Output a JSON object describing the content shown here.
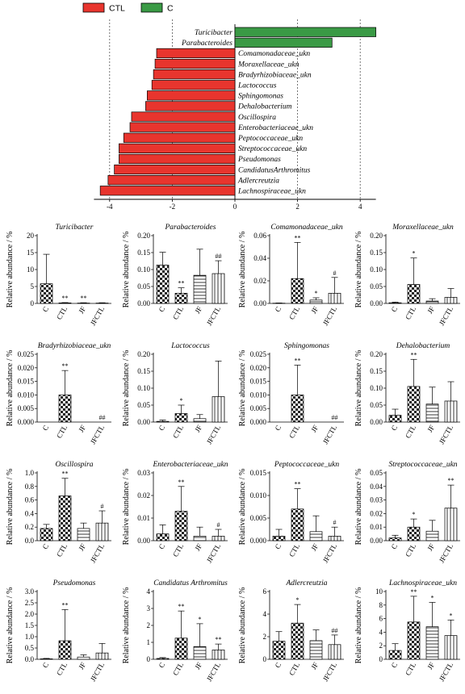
{
  "chart_data": [
    {
      "type": "bar",
      "orientation": "horizontal",
      "legend": [
        {
          "name": "CTL",
          "color": "#e8352e"
        },
        {
          "name": "C",
          "color": "#3a9a45"
        }
      ],
      "legend_placement": "top-left",
      "xlim": [
        -4.5,
        4.5
      ],
      "xticks": [
        "-4",
        "-2",
        "0",
        "2",
        "4"
      ],
      "grid": "dashed vertical lines at -4, -2, 2, 4",
      "categories": [
        "Turicibacter",
        "Parabacteroides",
        "Comamonadaceae_ukn",
        "Moraxellaceae_ukn",
        "Bradyrhizobiaceae_ukn",
        "Lactococcus",
        "Sphingomonas",
        "Dehalobacterium",
        "Oscillospira",
        "Enterobacteriaceae_ukn",
        "Peptococcaceae_ukn",
        "Streptococcaceae_ukn",
        "Pseudomonas",
        "CandidatusArthromitus",
        "Adlercreutzia",
        "Lachnospiraceae_ukn"
      ],
      "values": [
        4.5,
        3.1,
        -2.5,
        -2.55,
        -2.6,
        -2.65,
        -2.8,
        -2.85,
        -3.3,
        -3.35,
        -3.55,
        -3.7,
        -3.7,
        -3.85,
        -4.05,
        -4.3
      ],
      "groups": [
        "C",
        "C",
        "CTL",
        "CTL",
        "CTL",
        "CTL",
        "CTL",
        "CTL",
        "CTL",
        "CTL",
        "CTL",
        "CTL",
        "CTL",
        "CTL",
        "CTL",
        "CTL"
      ]
    },
    {
      "type": "bar",
      "title": "Turicibacter",
      "ylabel": "Relative abundance / %",
      "categories": [
        "C",
        "CTL",
        "JF",
        "JFCTL"
      ],
      "patterns": [
        "checker",
        "checker",
        "hlines",
        "vlines"
      ],
      "values": [
        5.8,
        0.15,
        0.1,
        0.1
      ],
      "errors": [
        8.7,
        0.1,
        0.1,
        0.1
      ],
      "annotations": [
        "",
        "**",
        "**",
        ""
      ],
      "ylim": [
        0,
        20
      ],
      "yticks": [
        "0",
        "5",
        "10",
        "15",
        "20"
      ]
    },
    {
      "type": "bar",
      "title": "Parabacteroides",
      "ylabel": "Relative abundance / %",
      "categories": [
        "C",
        "CTL",
        "JF",
        "JFCTL"
      ],
      "patterns": [
        "checker",
        "checker",
        "hlines",
        "vlines"
      ],
      "values": [
        0.113,
        0.03,
        0.083,
        0.088
      ],
      "errors": [
        0.038,
        0.016,
        0.077,
        0.038
      ],
      "annotations": [
        "",
        "**",
        "",
        "##"
      ],
      "ylim": [
        0,
        0.2
      ],
      "yticks": [
        "0.00",
        "0.05",
        "0.10",
        "0.15",
        "0.20"
      ]
    },
    {
      "type": "bar",
      "title": "Comamonadaceae_ukn",
      "ylabel": "Relative abundance / %",
      "categories": [
        "C",
        "CTL",
        "JF",
        "JFCTL"
      ],
      "patterns": [
        "checker",
        "checker",
        "hlines",
        "vlines"
      ],
      "values": [
        0.0002,
        0.022,
        0.003,
        0.009
      ],
      "errors": [
        0.0002,
        0.032,
        0.002,
        0.014
      ],
      "annotations": [
        "",
        "**",
        "*",
        "#"
      ],
      "ylim": [
        0,
        0.06
      ],
      "yticks": [
        "0.00",
        "0.02",
        "0.04",
        "0.06"
      ]
    },
    {
      "type": "bar",
      "title": "Moraxellaceae_ukn",
      "ylabel": "Relative abundance / %",
      "categories": [
        "C",
        "CTL",
        "JF",
        "JFCTL"
      ],
      "patterns": [
        "checker",
        "checker",
        "hlines",
        "vlines"
      ],
      "values": [
        0.002,
        0.056,
        0.007,
        0.018
      ],
      "errors": [
        0.002,
        0.078,
        0.007,
        0.026
      ],
      "annotations": [
        "",
        "*",
        "",
        ""
      ],
      "ylim": [
        0,
        0.2
      ],
      "yticks": [
        "0.00",
        "0.05",
        "0.10",
        "0.15",
        "0.20"
      ]
    },
    {
      "type": "bar",
      "title": "Bradyrhizobiaceae_ukn",
      "ylabel": "Relative abundance / %",
      "categories": [
        "C",
        "CTL",
        "JF",
        "JFCTL"
      ],
      "patterns": [
        "checker",
        "checker",
        "hlines",
        "vlines"
      ],
      "values": [
        0,
        0.01,
        0,
        0
      ],
      "errors": [
        0,
        0.009,
        0,
        0
      ],
      "annotations": [
        "",
        "**",
        "",
        "##"
      ],
      "ylim": [
        0,
        0.025
      ],
      "yticks": [
        "0.000",
        "0.005",
        "0.010",
        "0.015",
        "0.020",
        "0.025"
      ]
    },
    {
      "type": "bar",
      "title": "Lactococcus",
      "ylabel": "Relative abundance / %",
      "categories": [
        "C",
        "CTL",
        "JF",
        "JFCTL"
      ],
      "patterns": [
        "checker",
        "checker",
        "hlines",
        "vlines"
      ],
      "values": [
        0.002,
        0.025,
        0.01,
        0.075
      ],
      "errors": [
        0.004,
        0.025,
        0.012,
        0.105
      ],
      "annotations": [
        "",
        "*",
        "",
        ""
      ],
      "ylim": [
        0,
        0.2
      ],
      "yticks": [
        "0.00",
        "0.05",
        "0.10",
        "0.15",
        "0.20"
      ]
    },
    {
      "type": "bar",
      "title": "Sphingomonas",
      "ylabel": "Relative abundance / %",
      "categories": [
        "C",
        "CTL",
        "JF",
        "JFCTL"
      ],
      "patterns": [
        "checker",
        "checker",
        "hlines",
        "vlines"
      ],
      "values": [
        0,
        0.01,
        0,
        0
      ],
      "errors": [
        0,
        0.011,
        0,
        0
      ],
      "annotations": [
        "",
        "**",
        "",
        "##"
      ],
      "ylim": [
        0,
        0.025
      ],
      "yticks": [
        "0.000",
        "0.005",
        "0.010",
        "0.015",
        "0.020",
        "0.025"
      ]
    },
    {
      "type": "bar",
      "title": "Dehalobacterium",
      "ylabel": "Relative abundance / %",
      "categories": [
        "C",
        "CTL",
        "JF",
        "JFCTL"
      ],
      "patterns": [
        "checker",
        "checker",
        "hlines",
        "vlines"
      ],
      "values": [
        0.02,
        0.105,
        0.053,
        0.062
      ],
      "errors": [
        0.018,
        0.08,
        0.05,
        0.057
      ],
      "annotations": [
        "",
        "**",
        "",
        ""
      ],
      "ylim": [
        0,
        0.2
      ],
      "yticks": [
        "0.00",
        "0.05",
        "0.10",
        "0.15",
        "0.20"
      ]
    },
    {
      "type": "bar",
      "title": "Oscillospira",
      "ylabel": "Relative abundance / %",
      "categories": [
        "C",
        "CTL",
        "JF",
        "JFCTL"
      ],
      "patterns": [
        "checker",
        "checker",
        "hlines",
        "vlines"
      ],
      "values": [
        0.18,
        0.66,
        0.18,
        0.26
      ],
      "errors": [
        0.06,
        0.26,
        0.08,
        0.18
      ],
      "annotations": [
        "",
        "**",
        "",
        "#"
      ],
      "ylim": [
        0,
        1.0
      ],
      "yticks": [
        "0.0",
        "0.2",
        "0.4",
        "0.6",
        "0.8",
        "1.0"
      ]
    },
    {
      "type": "bar",
      "title": "Enterobacteriaceae_ukn",
      "ylabel": "Relative abundance / %",
      "categories": [
        "C",
        "CTL",
        "JF",
        "JFCTL"
      ],
      "patterns": [
        "checker",
        "checker",
        "hlines",
        "vlines"
      ],
      "values": [
        0.003,
        0.013,
        0.002,
        0.002
      ],
      "errors": [
        0.004,
        0.011,
        0.004,
        0.003
      ],
      "annotations": [
        "",
        "**",
        "",
        "#"
      ],
      "ylim": [
        0,
        0.03
      ],
      "yticks": [
        "0.00",
        "0.01",
        "0.02",
        "0.03"
      ]
    },
    {
      "type": "bar",
      "title": "Peptococcaceae_ukn",
      "ylabel": "Relative abundance / %",
      "categories": [
        "C",
        "CTL",
        "JF",
        "JFCTL"
      ],
      "patterns": [
        "checker",
        "checker",
        "hlines",
        "vlines"
      ],
      "values": [
        0.001,
        0.007,
        0.002,
        0.001
      ],
      "errors": [
        0.0015,
        0.0045,
        0.0035,
        0.002
      ],
      "annotations": [
        "",
        "**",
        "",
        "#"
      ],
      "ylim": [
        0,
        0.015
      ],
      "yticks": [
        "0.000",
        "0.005",
        "0.010",
        "0.015"
      ]
    },
    {
      "type": "bar",
      "title": "Streptococcaceae_ukn",
      "ylabel": "Relative abundance / %",
      "categories": [
        "C",
        "CTL",
        "JF",
        "JFCTL"
      ],
      "patterns": [
        "checker",
        "checker",
        "hlines",
        "vlines"
      ],
      "values": [
        0.002,
        0.01,
        0.007,
        0.024
      ],
      "errors": [
        0.002,
        0.006,
        0.008,
        0.017
      ],
      "annotations": [
        "",
        "*",
        "",
        "**"
      ],
      "ylim": [
        0,
        0.05
      ],
      "yticks": [
        "0.00",
        "0.01",
        "0.02",
        "0.03",
        "0.04",
        "0.05"
      ]
    },
    {
      "type": "bar",
      "title": "Pseudomonas",
      "ylabel": "Relative abundance / %",
      "categories": [
        "C",
        "CTL",
        "JF",
        "JFCTL"
      ],
      "patterns": [
        "checker",
        "checker",
        "hlines",
        "vlines"
      ],
      "values": [
        0.02,
        0.82,
        0.1,
        0.28
      ],
      "errors": [
        0.02,
        1.38,
        0.1,
        0.42
      ],
      "annotations": [
        "",
        "**",
        "",
        ""
      ],
      "ylim": [
        0,
        3.0
      ],
      "yticks": [
        "0.0",
        "0.5",
        "1.0",
        "1.5",
        "2.0",
        "2.5",
        "3.0"
      ]
    },
    {
      "type": "bar",
      "title": "Candidatus Arthromitus",
      "ylabel": "Relative abundance / %",
      "categories": [
        "C",
        "CTL",
        "JF",
        "JFCTL"
      ],
      "patterns": [
        "checker",
        "checker",
        "hlines",
        "vlines"
      ],
      "values": [
        0.05,
        1.25,
        0.75,
        0.55
      ],
      "errors": [
        0.05,
        1.6,
        1.35,
        0.35
      ],
      "annotations": [
        "",
        "**",
        "*",
        "**"
      ],
      "ylim": [
        0,
        4
      ],
      "yticks": [
        "0",
        "1",
        "2",
        "3",
        "4"
      ]
    },
    {
      "type": "bar",
      "title": "Adlercreutzia",
      "ylabel": "Relative abundance / %",
      "categories": [
        "C",
        "CTL",
        "JF",
        "JFCTL"
      ],
      "patterns": [
        "checker",
        "checker",
        "hlines",
        "vlines"
      ],
      "values": [
        1.6,
        3.2,
        1.65,
        1.3
      ],
      "errors": [
        0.85,
        1.65,
        0.95,
        0.85
      ],
      "annotations": [
        "",
        "*",
        "",
        "##"
      ],
      "ylim": [
        0,
        6
      ],
      "yticks": [
        "0",
        "2",
        "4",
        "6"
      ]
    },
    {
      "type": "bar",
      "title": "Lachnospiraceae_ukn",
      "ylabel": "Relative abundance / %",
      "categories": [
        "C",
        "CTL",
        "JF",
        "JFCTL"
      ],
      "patterns": [
        "checker",
        "checker",
        "hlines",
        "vlines"
      ],
      "values": [
        1.3,
        5.5,
        4.8,
        3.5
      ],
      "errors": [
        1.0,
        3.8,
        3.6,
        2.3
      ],
      "annotations": [
        "",
        "**",
        "*",
        "*"
      ],
      "ylim": [
        0,
        10
      ],
      "yticks": [
        "0",
        "2",
        "4",
        "6",
        "8",
        "10"
      ]
    }
  ]
}
